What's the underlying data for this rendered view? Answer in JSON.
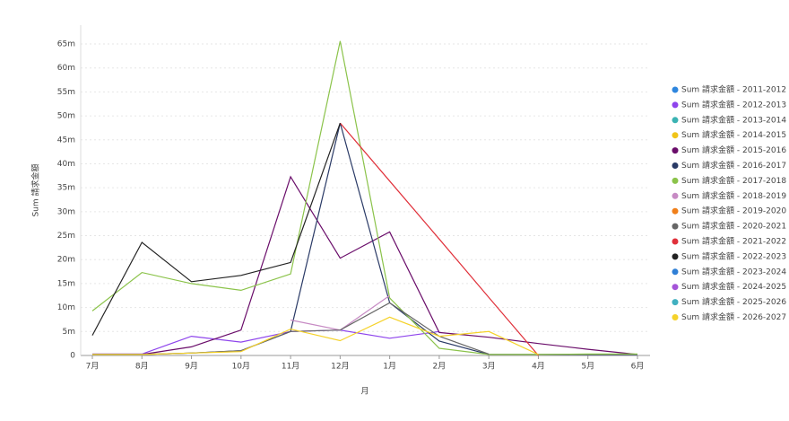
{
  "chart_data": {
    "type": "line",
    "x_label": "月",
    "y_label": "Sum 請求金額",
    "categories": [
      "7月",
      "8月",
      "9月",
      "10月",
      "11月",
      "12月",
      "1月",
      "2月",
      "3月",
      "4月",
      "5月",
      "6月"
    ],
    "ylim": [
      0,
      65
    ],
    "yticks": [
      0,
      {
        "value": 5,
        "label": "5m"
      },
      {
        "value": 10,
        "label": "10m"
      },
      {
        "value": 15,
        "label": "15m"
      },
      {
        "value": 20,
        "label": "20m"
      },
      {
        "value": 25,
        "label": "25m"
      },
      {
        "value": 30,
        "label": "30m"
      },
      {
        "value": 35,
        "label": "35m"
      },
      {
        "value": 40,
        "label": "40m"
      },
      {
        "value": 45,
        "label": "45m"
      },
      {
        "value": 50,
        "label": "50m"
      },
      {
        "value": 55,
        "label": "55m"
      },
      {
        "value": 60,
        "label": "60m"
      },
      {
        "value": 65,
        "label": "65m"
      }
    ],
    "grid": true,
    "series": [
      {
        "name": "Sum 請求金額 - 2011-2012",
        "color": "#2e86de",
        "values": [
          null,
          null,
          null,
          null,
          null,
          null,
          null,
          null,
          null,
          null,
          null,
          null
        ]
      },
      {
        "name": "Sum 請求金額 - 2012-2013",
        "color": "#8e44ec",
        "values": [
          0.3,
          0.3,
          4.0,
          2.8,
          5.0,
          5.3,
          3.6,
          5.0,
          null,
          null,
          null,
          null
        ]
      },
      {
        "name": "Sum 請求金額 - 2013-2014",
        "color": "#3bb3b3",
        "values": [
          null,
          null,
          null,
          null,
          null,
          null,
          null,
          null,
          null,
          null,
          null,
          null
        ]
      },
      {
        "name": "Sum 請求金額 - 2014-2015",
        "color": "#f0c419",
        "values": [
          null,
          null,
          null,
          null,
          null,
          null,
          null,
          null,
          null,
          null,
          null,
          null
        ]
      },
      {
        "name": "Sum 請求金額 - 2015-2016",
        "color": "#6a0d6a",
        "values": [
          0.2,
          0.2,
          1.8,
          5.3,
          37.3,
          20.3,
          25.8,
          4.8,
          3.8,
          2.5,
          1.3,
          0.2
        ]
      },
      {
        "name": "Sum 請求金額 - 2016-2017",
        "color": "#2a3a66",
        "values": [
          0.2,
          0.2,
          0.5,
          1.0,
          5.0,
          48.5,
          11.0,
          3.0,
          0.2,
          0.2,
          0.2,
          0.2
        ]
      },
      {
        "name": "Sum 請求金額 - 2017-2018",
        "color": "#8bc34a",
        "values": [
          9.3,
          17.3,
          15.0,
          13.6,
          17.0,
          65.6,
          12.0,
          1.5,
          0.2,
          0.2,
          0.3,
          0.3
        ]
      },
      {
        "name": "Sum 請求金額 - 2018-2019",
        "color": "#c78bc4",
        "values": [
          null,
          null,
          null,
          null,
          7.4,
          5.3,
          12.5,
          null,
          null,
          null,
          null,
          null
        ]
      },
      {
        "name": "Sum 請求金額 - 2019-2020",
        "color": "#f07f1a",
        "values": [
          null,
          null,
          null,
          null,
          null,
          null,
          null,
          null,
          null,
          null,
          null,
          null
        ]
      },
      {
        "name": "Sum 請求金額 - 2020-2021",
        "color": "#666666",
        "values": [
          0.2,
          0.2,
          0.5,
          1.0,
          5.0,
          5.3,
          11.0,
          4.0,
          0.3,
          null,
          null,
          null
        ]
      },
      {
        "name": "Sum 請求金額 - 2021-2022",
        "color": "#e0303a",
        "values": [
          null,
          null,
          null,
          null,
          null,
          48.5,
          36.4,
          24.3,
          12.1,
          0,
          null,
          null
        ]
      },
      {
        "name": "Sum 請求金額 - 2022-2023",
        "color": "#222222",
        "values": [
          4.2,
          23.6,
          15.4,
          16.7,
          19.4,
          48.5,
          null,
          null,
          null,
          null,
          null,
          null
        ]
      },
      {
        "name": "Sum 請求金額 - 2023-2024",
        "color": "#2f7fd6",
        "values": [
          null,
          null,
          null,
          null,
          null,
          null,
          null,
          null,
          null,
          null,
          null,
          null
        ]
      },
      {
        "name": "Sum 請求金額 - 2024-2025",
        "color": "#a454d8",
        "values": [
          null,
          null,
          null,
          null,
          null,
          null,
          null,
          null,
          null,
          null,
          null,
          null
        ]
      },
      {
        "name": "Sum 請求金額 - 2025-2026",
        "color": "#40b0c0",
        "values": [
          null,
          null,
          null,
          null,
          null,
          null,
          null,
          null,
          null,
          null,
          null,
          null
        ]
      },
      {
        "name": "Sum 請求金額 - 2026-2027",
        "color": "#f5d22a",
        "values": [
          0.2,
          0.2,
          0.5,
          0.8,
          5.5,
          3.1,
          8.0,
          4.0,
          5.0,
          0.2,
          null,
          null
        ]
      }
    ]
  }
}
